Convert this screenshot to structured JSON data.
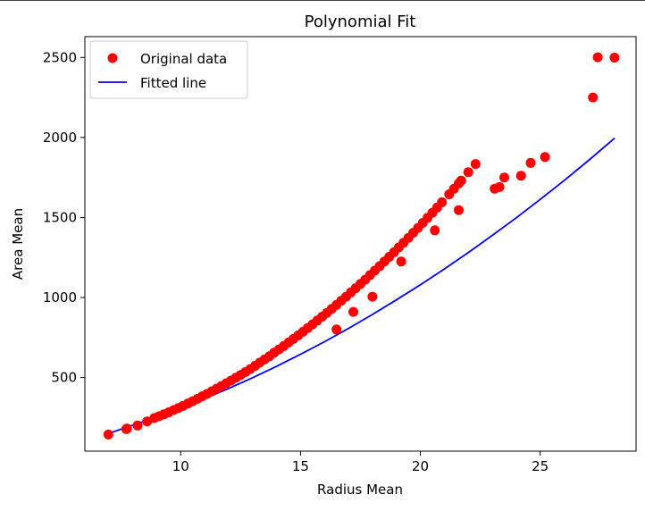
{
  "chart_data": {
    "type": "scatter",
    "title": "Polynomial Fit",
    "xlabel": "Radius Mean",
    "ylabel": "Area Mean",
    "xlim": [
      6.0,
      29.0
    ],
    "ylim": [
      40,
      2630
    ],
    "xticks": [
      10,
      15,
      20,
      25
    ],
    "yticks": [
      500,
      1000,
      1500,
      2000,
      2500
    ],
    "grid": false,
    "legend": {
      "position": "upper left",
      "entries": [
        "Original data",
        "Fitted line"
      ]
    },
    "series": [
      {
        "name": "Original data",
        "kind": "scatter",
        "color": "#ff0000",
        "x": [
          6.98,
          7.73,
          7.76,
          8.2,
          8.6,
          8.9,
          9.1,
          9.3,
          9.5,
          9.7,
          9.9,
          10.1,
          10.3,
          10.5,
          10.7,
          10.9,
          11.1,
          11.3,
          11.5,
          11.7,
          11.9,
          12.1,
          12.3,
          12.5,
          12.7,
          12.9,
          13.1,
          13.3,
          13.5,
          13.7,
          13.9,
          14.1,
          14.3,
          14.5,
          14.7,
          14.9,
          15.1,
          15.3,
          15.5,
          15.7,
          15.9,
          16.1,
          16.3,
          16.5,
          16.7,
          16.9,
          17.1,
          17.3,
          17.5,
          17.7,
          17.9,
          18.1,
          18.3,
          18.5,
          18.7,
          18.9,
          19.1,
          19.3,
          19.5,
          19.7,
          19.9,
          20.1,
          20.3,
          20.5,
          20.7,
          20.9,
          21.2,
          21.4,
          21.6,
          21.7,
          22.0,
          22.3,
          23.1,
          23.3,
          23.5,
          24.2,
          24.6,
          25.2,
          27.2,
          27.4,
          28.1,
          16.5,
          17.2,
          18.0,
          19.2,
          20.6,
          21.6
        ],
        "y": [
          144,
          178,
          181,
          200,
          226,
          247,
          258,
          270,
          283,
          297,
          309,
          323,
          338,
          352,
          367,
          383,
          398,
          414,
          431,
          447,
          464,
          481,
          499,
          516,
          534,
          553,
          573,
          593,
          613,
          633,
          655,
          676,
          697,
          719,
          741,
          763,
          786,
          809,
          832,
          856,
          880,
          904,
          929,
          954,
          980,
          1005,
          1032,
          1058,
          1085,
          1112,
          1140,
          1168,
          1196,
          1225,
          1254,
          1283,
          1313,
          1343,
          1373,
          1404,
          1435,
          1466,
          1498,
          1530,
          1562,
          1595,
          1645,
          1679,
          1713,
          1730,
          1783,
          1834,
          1680,
          1690,
          1750,
          1761,
          1841,
          1878,
          2250,
          2501,
          2499,
          800,
          910,
          1005,
          1225,
          1420,
          1546
        ]
      },
      {
        "name": "Fitted line",
        "kind": "line",
        "color": "#0000ff",
        "x": [
          6.98,
          8,
          9,
          10,
          11,
          12,
          13,
          14,
          15,
          16,
          17,
          18,
          19,
          20,
          21,
          22,
          23,
          24,
          25,
          26,
          27,
          28.11
        ],
        "y": [
          150,
          203,
          254,
          309,
          369,
          432,
          499,
          570,
          645,
          724,
          807,
          894,
          985,
          1080,
          1178,
          1281,
          1388,
          1498,
          1613,
          1731,
          1854,
          1996
        ]
      }
    ]
  }
}
